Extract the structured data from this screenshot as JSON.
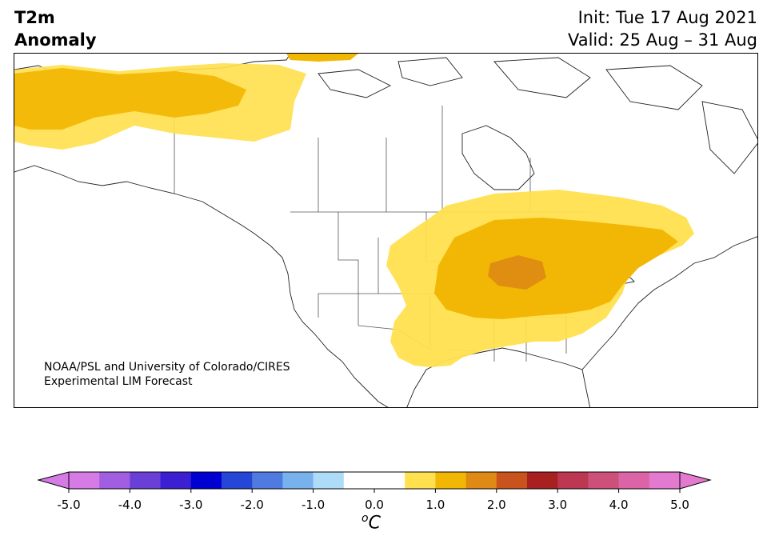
{
  "title": {
    "left_line1": "T2m",
    "left_line2": "Anomaly",
    "init": "Init: Tue 17 Aug 2021",
    "valid": "Valid: 25 Aug – 31 Aug"
  },
  "credit": {
    "line1": "NOAA/PSL and University of Colorado/CIRES",
    "line2": "Experimental LIM Forecast"
  },
  "colorbar": {
    "labels": [
      "-5.0",
      "-4.0",
      "-3.0",
      "-2.0",
      "-1.0",
      "0.0",
      "1.0",
      "2.0",
      "3.0",
      "4.0",
      "5.0"
    ],
    "units_sup": "o",
    "units": "C",
    "colors": [
      "#d67ae6",
      "#a25ee0",
      "#6a3fd6",
      "#3b1fd0",
      "#0000d2",
      "#2646d8",
      "#4f7ae0",
      "#78b2ee",
      "#aedcf8",
      "#ffffff",
      "#ffffff",
      "#ffe04f",
      "#f2b705",
      "#de8a14",
      "#c9531c",
      "#a8201f",
      "#bb3752",
      "#cc5079",
      "#da64a6",
      "#e47acf"
    ],
    "extend_min_color": "#d67ae6",
    "extend_max_color": "#e47acf"
  },
  "map": {
    "region": "North America",
    "anomaly_colors": {
      "weak_warm": "#ffe04f",
      "moderate_warm": "#f2b705",
      "strong_warm": "#de8a14"
    }
  }
}
